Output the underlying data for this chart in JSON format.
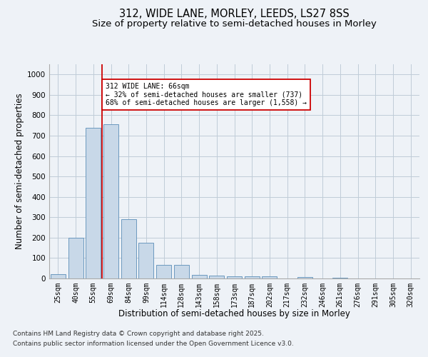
{
  "title_line1": "312, WIDE LANE, MORLEY, LEEDS, LS27 8SS",
  "title_line2": "Size of property relative to semi-detached houses in Morley",
  "xlabel": "Distribution of semi-detached houses by size in Morley",
  "ylabel": "Number of semi-detached properties",
  "categories": [
    "25sqm",
    "40sqm",
    "55sqm",
    "69sqm",
    "84sqm",
    "99sqm",
    "114sqm",
    "128sqm",
    "143sqm",
    "158sqm",
    "173sqm",
    "187sqm",
    "202sqm",
    "217sqm",
    "232sqm",
    "246sqm",
    "261sqm",
    "276sqm",
    "291sqm",
    "305sqm",
    "320sqm"
  ],
  "values": [
    22,
    200,
    737,
    757,
    290,
    175,
    65,
    65,
    18,
    15,
    12,
    12,
    12,
    0,
    8,
    0,
    5,
    0,
    0,
    0,
    0
  ],
  "bar_color": "#c8d8e8",
  "bar_edge_color": "#5b8db8",
  "vline_color": "#cc0000",
  "annotation_text": "312 WIDE LANE: 66sqm\n← 32% of semi-detached houses are smaller (737)\n68% of semi-detached houses are larger (1,558) →",
  "annotation_box_color": "#ffffff",
  "annotation_box_edge": "#cc0000",
  "ylim": [
    0,
    1050
  ],
  "yticks": [
    0,
    100,
    200,
    300,
    400,
    500,
    600,
    700,
    800,
    900,
    1000
  ],
  "footer_line1": "Contains HM Land Registry data © Crown copyright and database right 2025.",
  "footer_line2": "Contains public sector information licensed under the Open Government Licence v3.0.",
  "bg_color": "#eef2f7",
  "plot_bg_color": "#eef2f7",
  "grid_color": "#c0ccd8",
  "title_fontsize": 10.5,
  "subtitle_fontsize": 9.5,
  "axis_label_fontsize": 8.5,
  "tick_fontsize": 7,
  "footer_fontsize": 6.5
}
